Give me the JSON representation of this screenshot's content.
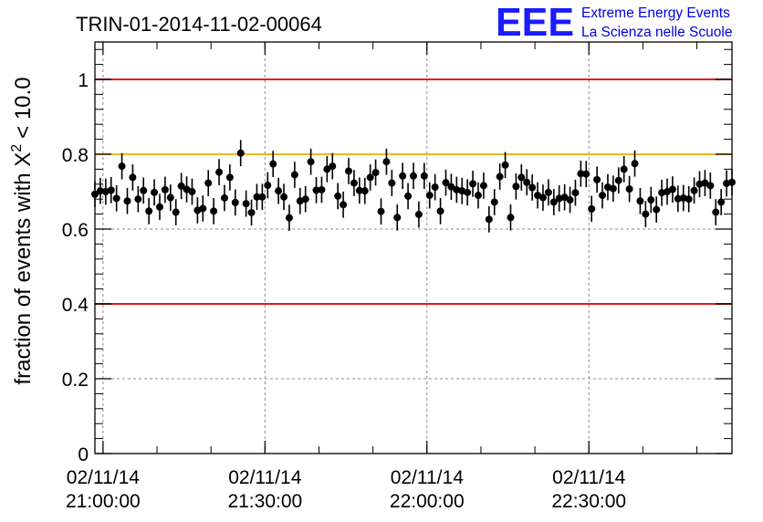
{
  "chart_data": {
    "type": "scatter",
    "title": "TRIN-01-2014-11-02-00064",
    "ylabel": "fraction of events with",
    "ylabel_symbol": "X",
    "ylabel_superscript": "2",
    "ylabel_tail": "< 10.0",
    "xlabel": "",
    "ylim": [
      0,
      1.1
    ],
    "xlim": [
      "2014-11-02 20:58:30",
      "2014-11-02 22:56:30"
    ],
    "y_ticks": [
      {
        "value": 0,
        "label": "0"
      },
      {
        "value": 0.2,
        "label": "0.2"
      },
      {
        "value": 0.4,
        "label": "0.4"
      },
      {
        "value": 0.6,
        "label": "0.6"
      },
      {
        "value": 0.8,
        "label": "0.8"
      },
      {
        "value": 1.0,
        "label": "1"
      }
    ],
    "x_ticks": [
      {
        "time": "2014-11-02 21:00:00",
        "date_label": "02/11/14",
        "time_label": "21:00:00"
      },
      {
        "time": "2014-11-02 21:30:00",
        "date_label": "02/11/14",
        "time_label": "21:30:00"
      },
      {
        "time": "2014-11-02 22:00:00",
        "date_label": "02/11/14",
        "time_label": "22:00:00"
      },
      {
        "time": "2014-11-02 22:30:00",
        "date_label": "02/11/14",
        "time_label": "22:30:00"
      }
    ],
    "grid": true,
    "reference_lines": [
      {
        "y": 1.0,
        "color": "#e8161b"
      },
      {
        "y": 0.8,
        "color": "#f7b718"
      },
      {
        "y": 0.4,
        "color": "#e8161b"
      }
    ],
    "marker_color": "#000000",
    "series": [
      {
        "x": [
          "20:58:30",
          "20:59:30",
          "21:00:30",
          "21:01:30",
          "21:02:30",
          "21:03:30",
          "21:04:30",
          "21:05:30",
          "21:06:30",
          "21:07:30",
          "21:08:30",
          "21:09:30",
          "21:10:30",
          "21:11:30",
          "21:12:30",
          "21:13:30",
          "21:14:30",
          "21:15:30",
          "21:16:30",
          "21:17:30",
          "21:18:30",
          "21:19:30",
          "21:20:30",
          "21:21:30",
          "21:22:30",
          "21:23:30",
          "21:24:30",
          "21:25:30",
          "21:26:30",
          "21:27:30",
          "21:28:30",
          "21:29:30",
          "21:30:30",
          "21:31:30",
          "21:32:30",
          "21:33:30",
          "21:34:30",
          "21:35:30",
          "21:36:30",
          "21:37:30",
          "21:38:30",
          "21:39:30",
          "21:40:30",
          "21:41:30",
          "21:42:30",
          "21:43:30",
          "21:44:30",
          "21:45:30",
          "21:46:30",
          "21:47:30",
          "21:48:30",
          "21:49:30",
          "21:50:30",
          "21:51:30",
          "21:52:30",
          "21:53:30",
          "21:54:30",
          "21:55:30",
          "21:56:30",
          "21:57:30",
          "21:58:30",
          "21:59:30",
          "22:00:30",
          "22:01:30",
          "22:02:30",
          "22:03:30",
          "22:04:30",
          "22:05:30",
          "22:06:30",
          "22:07:30",
          "22:08:30",
          "22:09:30",
          "22:10:30",
          "22:11:30",
          "22:12:30",
          "22:13:30",
          "22:14:30",
          "22:15:30",
          "22:16:30",
          "22:17:30",
          "22:18:30",
          "22:19:30",
          "22:20:30",
          "22:21:30",
          "22:22:30",
          "22:23:30",
          "22:24:30",
          "22:25:30",
          "22:26:30",
          "22:27:30",
          "22:28:30",
          "22:29:30",
          "22:30:30",
          "22:31:30",
          "22:32:30",
          "22:33:30",
          "22:34:30",
          "22:35:30",
          "22:36:30",
          "22:37:30",
          "22:38:30",
          "22:39:30",
          "22:40:30",
          "22:41:30",
          "22:42:30",
          "22:43:30",
          "22:44:30",
          "22:45:30",
          "22:46:30",
          "22:47:30",
          "22:48:30",
          "22:49:30",
          "22:50:30",
          "22:51:30",
          "22:52:30",
          "22:53:30",
          "22:54:30",
          "22:55:30",
          "22:56:30"
        ],
        "y": [
          0.693,
          0.702,
          0.7,
          0.704,
          0.682,
          0.768,
          0.675,
          0.738,
          0.68,
          0.703,
          0.648,
          0.698,
          0.659,
          0.705,
          0.684,
          0.645,
          0.715,
          0.706,
          0.7,
          0.65,
          0.655,
          0.723,
          0.648,
          0.752,
          0.683,
          0.738,
          0.671,
          0.803,
          0.668,
          0.644,
          0.686,
          0.686,
          0.717,
          0.774,
          0.702,
          0.686,
          0.63,
          0.745,
          0.675,
          0.68,
          0.78,
          0.704,
          0.705,
          0.76,
          0.768,
          0.688,
          0.665,
          0.755,
          0.723,
          0.703,
          0.702,
          0.738,
          0.751,
          0.647,
          0.78,
          0.723,
          0.631,
          0.742,
          0.688,
          0.742,
          0.639,
          0.742,
          0.69,
          0.712,
          0.648,
          0.724,
          0.713,
          0.705,
          0.702,
          0.698,
          0.721,
          0.69,
          0.716,
          0.626,
          0.672,
          0.74,
          0.771,
          0.631,
          0.714,
          0.738,
          0.725,
          0.711,
          0.69,
          0.684,
          0.698,
          0.672,
          0.682,
          0.685,
          0.678,
          0.697,
          0.748,
          0.747,
          0.654,
          0.732,
          0.69,
          0.712,
          0.708,
          0.73,
          0.76,
          0.707,
          0.775,
          0.675,
          0.64,
          0.678,
          0.652,
          0.697,
          0.7,
          0.706,
          0.681,
          0.683,
          0.68,
          0.703,
          0.72,
          0.723,
          0.716,
          0.645,
          0.672,
          0.722,
          0.725
        ],
        "err": 0.035
      }
    ]
  },
  "logo": {
    "mark": "EEE",
    "line1": "Extreme Energy Events",
    "line2": "La Scienza nelle Scuole",
    "color": "#1b1bff"
  }
}
